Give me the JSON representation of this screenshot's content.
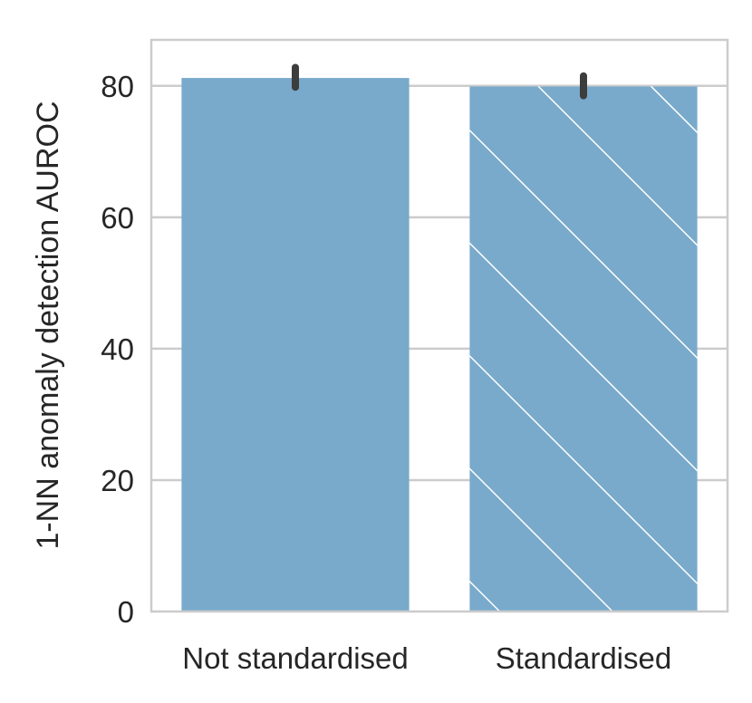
{
  "chart_data": {
    "type": "bar",
    "title": "",
    "xlabel": "",
    "ylabel": "1-NN anomaly detection AUROC",
    "categories": [
      "Not standardised",
      "Standardised"
    ],
    "values": [
      81.2,
      79.9
    ],
    "error_bars": [
      {
        "low": 79.8,
        "high": 82.8
      },
      {
        "low": 78.5,
        "high": 81.5
      }
    ],
    "hatch": [
      "none",
      "diagonal"
    ],
    "ylim": [
      0,
      87
    ],
    "yticks": [
      0,
      20,
      40,
      60,
      80
    ],
    "ytick_labels": [
      "0",
      "20",
      "40",
      "60",
      "80"
    ],
    "grid": "horizontal",
    "legend": "none",
    "colors": {
      "bar": "#79aacb",
      "error_bar": "#3d3d3d",
      "grid": "#cccccc",
      "frame": "#cccccc",
      "hatch": "#ffffff"
    }
  }
}
